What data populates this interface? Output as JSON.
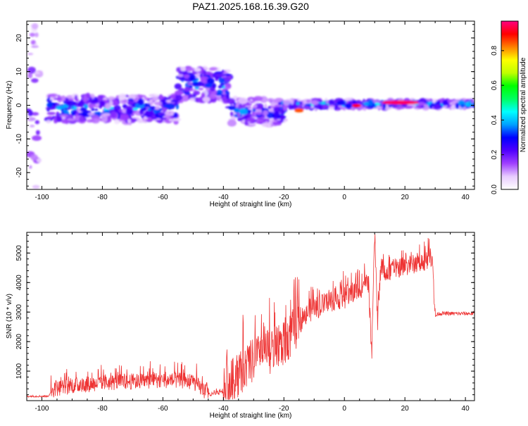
{
  "title": "PAZ1.2025.168.16.39.G20",
  "chart_data": [
    {
      "type": "heatmap",
      "xlabel": "Height of straight line (km)",
      "ylabel": "Frequency (Hz)",
      "xlim": [
        -105,
        43
      ],
      "ylim": [
        -25,
        25
      ],
      "xticks": [
        -100,
        -80,
        -60,
        -40,
        -20,
        0,
        20,
        40
      ],
      "yticks": [
        -20,
        -10,
        0,
        10,
        20
      ],
      "colorbar": {
        "label": "Normalized spectral amplitude",
        "range": [
          0,
          0.97
        ],
        "ticks": [
          0.0,
          0.2,
          0.4,
          0.6,
          0.8
        ],
        "colormap": [
          "#ffffff",
          "#e8ccff",
          "#a040ff",
          "#5000ff",
          "#0000ff",
          "#00a0ff",
          "#00ffff",
          "#00ff60",
          "#00ff00",
          "#c0ff00",
          "#ffff00",
          "#ff8000",
          "#ff0000",
          "#ff0080"
        ]
      },
      "features": [
        {
          "x": [
            -105,
            -100
          ],
          "freq_center": 0,
          "freq_spread": 25,
          "level": 0.25
        },
        {
          "x": [
            -98,
            -55
          ],
          "freq_center": -1,
          "freq_spread": 4,
          "level": 0.4
        },
        {
          "x": [
            -55,
            -38
          ],
          "freq_center": 6,
          "freq_spread": 5,
          "level": 0.4
        },
        {
          "x": [
            -38,
            -20
          ],
          "freq_center": -2,
          "freq_spread": 4,
          "level": 0.35
        },
        {
          "x": [
            -20,
            43
          ],
          "freq_center": 0.3,
          "freq_spread": 1,
          "level": 0.45
        },
        {
          "x": [
            -16,
            -14
          ],
          "freq_center": -1.5,
          "level": 0.85
        },
        {
          "x": [
            3,
            5
          ],
          "freq_center": 0,
          "level": 0.9
        },
        {
          "x": [
            13,
            24
          ],
          "freq_center": 0.8,
          "level": 0.95
        }
      ]
    },
    {
      "type": "line",
      "xlabel": "Height of straight line (km)",
      "ylabel": "SNR (10 * v/v)",
      "xlim": [
        -105,
        43
      ],
      "ylim": [
        0,
        5700
      ],
      "xticks": [
        -100,
        -80,
        -60,
        -40,
        -20,
        0,
        20,
        40
      ],
      "yticks": [
        1000,
        2000,
        3000,
        4000,
        5000
      ],
      "color": "#ee3333",
      "series": [
        {
          "x": [
            -105,
            -98,
            -96,
            -90,
            -80,
            -70,
            -60,
            -50,
            -46,
            -44,
            -40,
            -36,
            -32,
            -28,
            -24,
            -20,
            -16,
            -12,
            -8,
            -4,
            0,
            4,
            6,
            8,
            9,
            10,
            11,
            12,
            14,
            18,
            22,
            26,
            29,
            30,
            31,
            35,
            43
          ],
          "values": [
            150,
            150,
            400,
            500,
            600,
            650,
            700,
            650,
            300,
            200,
            300,
            800,
            1200,
            1500,
            1700,
            1900,
            2500,
            3000,
            3200,
            3400,
            3500,
            3700,
            3900,
            4000,
            1300,
            5700,
            2600,
            4500,
            4300,
            4500,
            4600,
            4700,
            4900,
            2850,
            2950,
            2950,
            2950
          ]
        }
      ]
    }
  ]
}
